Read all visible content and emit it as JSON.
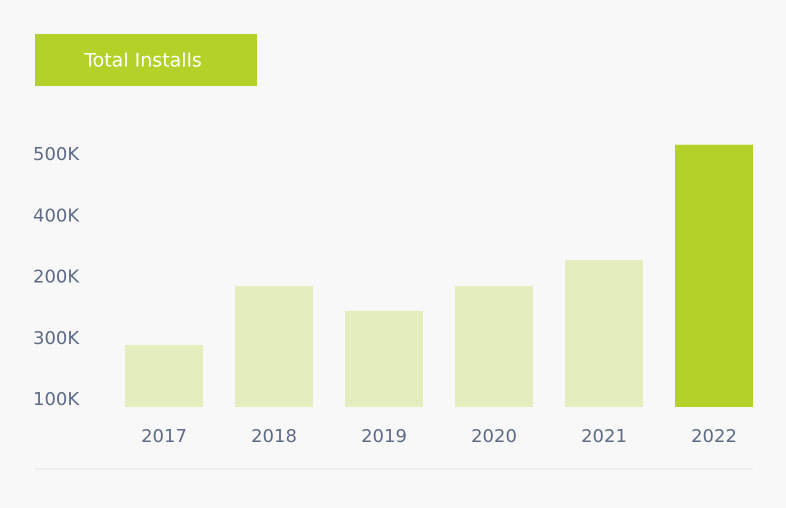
{
  "chart_data": {
    "type": "bar",
    "title": "Total Installs",
    "categories": [
      "2017",
      "2018",
      "2019",
      "2020",
      "2021",
      "2022"
    ],
    "values": [
      190000,
      285000,
      245000,
      285000,
      327000,
      513000
    ],
    "colors": [
      "#e3edbd",
      "#e3edbd",
      "#e3edbd",
      "#e3edbd",
      "#e3edbd",
      "#b2d22a"
    ],
    "title_color": "#b2d22a",
    "ylim": [
      90000,
      520000
    ],
    "y_axis_labels": [
      "500K",
      "400K",
      "200K",
      "300K",
      "100K"
    ]
  }
}
